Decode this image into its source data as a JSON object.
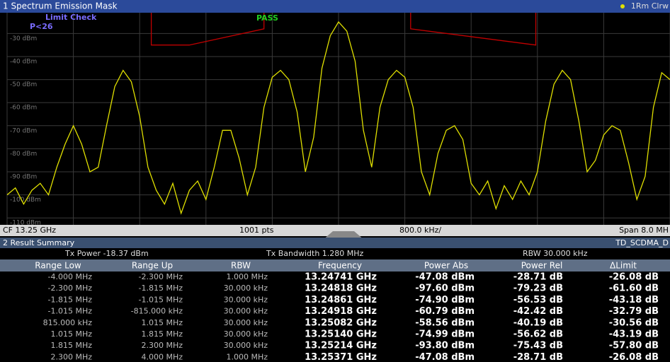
{
  "chart_data": {
    "type": "line",
    "title": "1 Spectrum Emission Mask",
    "trace_label": "1Rm Clrw",
    "limit_check": "Limit Check",
    "limit_value": "P<26",
    "status": "PASS",
    "xlim": [
      -4,
      4
    ],
    "xticks": [
      -4,
      -3.2,
      -2.4,
      -1.6,
      -0.8,
      0,
      0.8,
      1.6,
      2.4,
      3.2,
      4
    ],
    "ylim": [
      -113,
      -21
    ],
    "yticks": [
      {
        "value": -30,
        "label": "-30 dBm"
      },
      {
        "value": -40,
        "label": "-40 dBm"
      },
      {
        "value": -50,
        "label": "-50 dBm"
      },
      {
        "value": -60,
        "label": "-60 dBm"
      },
      {
        "value": -70,
        "label": "-70 dBm"
      },
      {
        "value": -80,
        "label": "-80 dBm"
      },
      {
        "value": -90,
        "label": "-90 dBm"
      },
      {
        "value": -100,
        "label": "-100 dBm"
      },
      {
        "value": -110,
        "label": "-110 dBm"
      }
    ],
    "grid": true,
    "series": [
      {
        "name": "1Rm Clrw",
        "color": "#e0e000",
        "x": [
          -4.0,
          -3.9,
          -3.8,
          -3.7,
          -3.6,
          -3.5,
          -3.4,
          -3.3,
          -3.2,
          -3.1,
          -3.0,
          -2.9,
          -2.8,
          -2.7,
          -2.6,
          -2.5,
          -2.4,
          -2.3,
          -2.2,
          -2.1,
          -2.0,
          -1.9,
          -1.8,
          -1.7,
          -1.6,
          -1.5,
          -1.4,
          -1.3,
          -1.2,
          -1.1,
          -1.0,
          -0.9,
          -0.8,
          -0.7,
          -0.6,
          -0.5,
          -0.4,
          -0.3,
          -0.2,
          -0.1,
          0.0,
          0.1,
          0.2,
          0.3,
          0.4,
          0.5,
          0.6,
          0.7,
          0.8,
          0.9,
          1.0,
          1.1,
          1.2,
          1.3,
          1.4,
          1.5,
          1.6,
          1.7,
          1.8,
          1.9,
          2.0,
          2.1,
          2.2,
          2.3,
          2.4,
          2.5,
          2.6,
          2.7,
          2.8,
          2.9,
          3.0,
          3.1,
          3.2,
          3.3,
          3.4,
          3.5,
          3.6,
          3.7,
          3.8,
          3.9,
          4.0
        ],
        "values": [
          -100,
          -97,
          -104,
          -98,
          -95,
          -100,
          -88,
          -78,
          -70,
          -78,
          -90,
          -88,
          -70,
          -53,
          -46,
          -51,
          -66,
          -88,
          -98,
          -104,
          -95,
          -108,
          -98,
          -94,
          -102,
          -88,
          -72,
          -72,
          -84,
          -100,
          -88,
          -62,
          -49,
          -46,
          -50,
          -64,
          -90,
          -75,
          -45,
          -31,
          -25,
          -29,
          -42,
          -72,
          -88,
          -62,
          -50,
          -46,
          -49,
          -62,
          -90,
          -100,
          -82,
          -72,
          -70,
          -76,
          -95,
          -100,
          -94,
          -106,
          -96,
          -102,
          -94,
          -100,
          -90,
          -68,
          -52,
          -46,
          -50,
          -68,
          -90,
          -85,
          -74,
          -70,
          -72,
          -86,
          -102,
          -92,
          -62,
          -47,
          -50
        ]
      },
      {
        "name": "Limit",
        "color": "#c00000",
        "x": [
          -2.26,
          -2.26,
          -1.8,
          -0.9,
          -0.9,
          null,
          0.87,
          0.87,
          2.38,
          2.38
        ],
        "values": [
          -21,
          -35,
          -35,
          -28,
          -21,
          null,
          -21,
          -28,
          -35,
          -21
        ]
      }
    ],
    "footer": {
      "cf": "CF 13.25 GHz",
      "points": "1001 pts",
      "per_div": "800.0 kHz/",
      "span": "Span 8.0 MH"
    }
  },
  "summary": {
    "title": "2 Result Summary",
    "standard": "TD_SCDMA_D",
    "tx_power": "Tx Power  -18.37 dBm",
    "tx_bandwidth": "Tx Bandwidth  1.280 MHz",
    "rbw": "RBW  30.000 kHz"
  },
  "table": {
    "columns": [
      "Range Low",
      "Range Up",
      "RBW",
      "Frequency",
      "Power Abs",
      "Power Rel",
      "ΔLimit"
    ],
    "rows": [
      [
        "-4.000 MHz",
        "-2.300 MHz",
        "1.000 MHz",
        "13.24741 GHz",
        "-47.08 dBm",
        "-28.71 dB",
        "-26.08 dB"
      ],
      [
        "-2.300 MHz",
        "-1.815 MHz",
        "30.000 kHz",
        "13.24818 GHz",
        "-97.60 dBm",
        "-79.23 dB",
        "-61.60 dB"
      ],
      [
        "-1.815 MHz",
        "-1.015 MHz",
        "30.000 kHz",
        "13.24861 GHz",
        "-74.90 dBm",
        "-56.53 dB",
        "-43.18 dB"
      ],
      [
        "-1.015 MHz",
        "-815.000 kHz",
        "30.000 kHz",
        "13.24918 GHz",
        "-60.79 dBm",
        "-42.42 dB",
        "-32.79 dB"
      ],
      [
        "815.000 kHz",
        "1.015 MHz",
        "30.000 kHz",
        "13.25082 GHz",
        "-58.56 dBm",
        "-40.19 dB",
        "-30.56 dB"
      ],
      [
        "1.015 MHz",
        "1.815 MHz",
        "30.000 kHz",
        "13.25140 GHz",
        "-74.99 dBm",
        "-56.62 dB",
        "-43.19 dB"
      ],
      [
        "1.815 MHz",
        "2.300 MHz",
        "30.000 kHz",
        "13.25214 GHz",
        "-93.80 dBm",
        "-75.43 dB",
        "-57.80 dB"
      ],
      [
        "2.300 MHz",
        "4.000 MHz",
        "1.000 MHz",
        "13.25371 GHz",
        "-47.08 dBm",
        "-28.71 dB",
        "-26.08 dB"
      ]
    ]
  }
}
